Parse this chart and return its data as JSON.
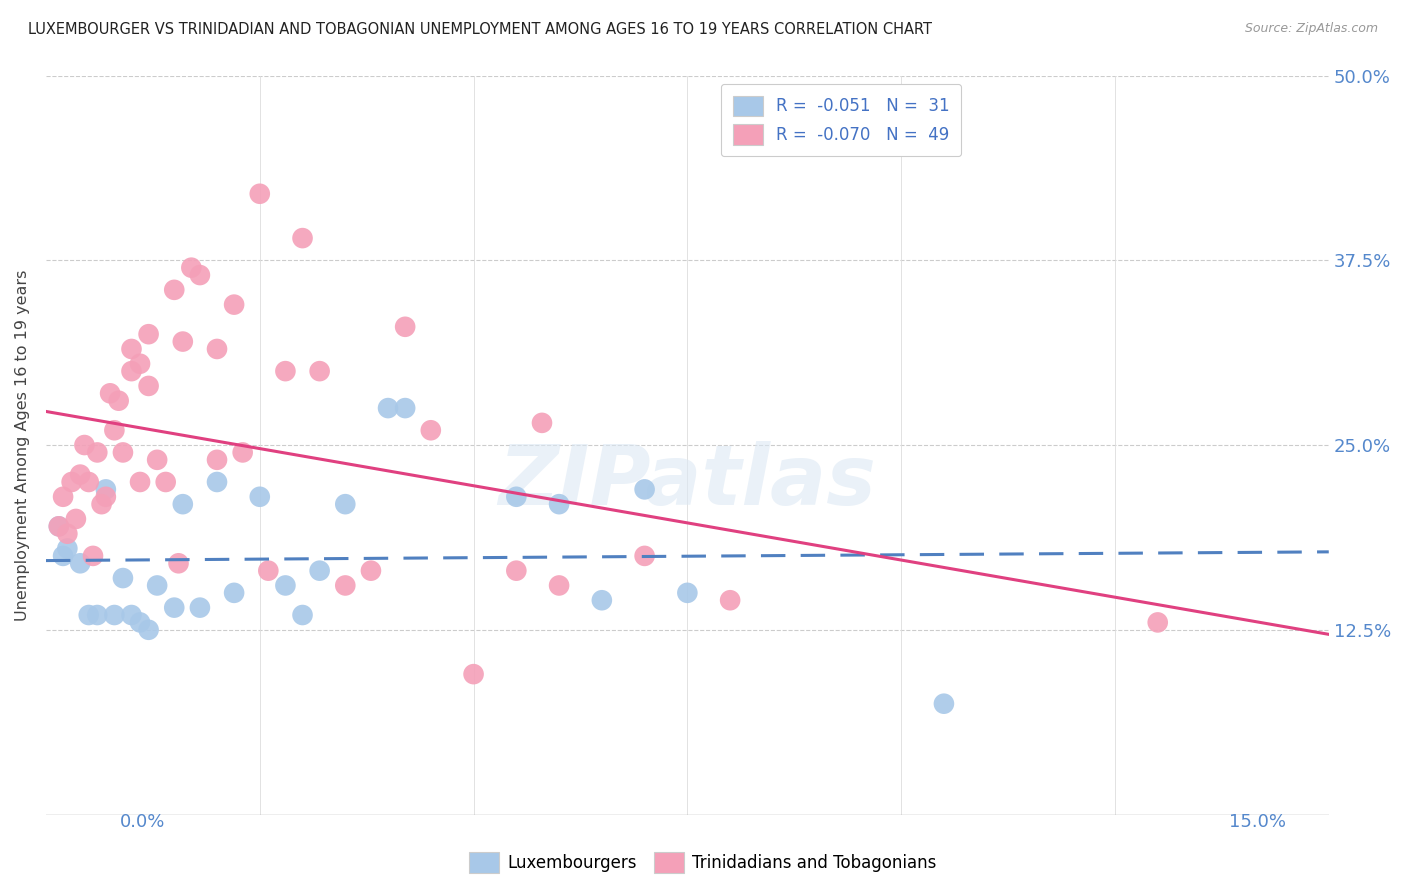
{
  "title": "LUXEMBOURGER VS TRINIDADIAN AND TOBAGONIAN UNEMPLOYMENT AMONG AGES 16 TO 19 YEARS CORRELATION CHART",
  "source": "Source: ZipAtlas.com",
  "ylabel": "Unemployment Among Ages 16 to 19 years",
  "xlim": [
    0.0,
    15.0
  ],
  "ylim": [
    0.0,
    50.0
  ],
  "ytick_vals": [
    12.5,
    25.0,
    37.5,
    50.0
  ],
  "legend_blue_r_val": "-0.051",
  "legend_blue_n_val": "31",
  "legend_pink_r_val": "-0.070",
  "legend_pink_n_val": "49",
  "blue_color": "#a8c8e8",
  "pink_color": "#f4a0b8",
  "blue_line_color": "#5080c0",
  "pink_line_color": "#e04080",
  "watermark": "ZIPatlas",
  "blue_points_x": [
    0.2,
    0.4,
    0.5,
    0.6,
    0.7,
    0.8,
    0.9,
    1.0,
    1.1,
    1.2,
    1.3,
    1.5,
    1.6,
    1.8,
    2.0,
    2.2,
    2.5,
    2.8,
    3.0,
    3.2,
    3.5,
    4.0,
    4.2,
    5.5,
    6.0,
    6.5,
    7.0,
    7.5,
    0.15,
    0.25,
    10.5
  ],
  "blue_points_y": [
    17.5,
    17.0,
    13.5,
    13.5,
    22.0,
    13.5,
    16.0,
    13.5,
    13.0,
    12.5,
    15.5,
    14.0,
    21.0,
    14.0,
    22.5,
    15.0,
    21.5,
    15.5,
    13.5,
    16.5,
    21.0,
    27.5,
    27.5,
    21.5,
    21.0,
    14.5,
    22.0,
    15.0,
    19.5,
    18.0,
    7.5
  ],
  "pink_points_x": [
    0.15,
    0.2,
    0.25,
    0.3,
    0.35,
    0.4,
    0.45,
    0.5,
    0.55,
    0.6,
    0.65,
    0.7,
    0.75,
    0.8,
    0.85,
    0.9,
    1.0,
    1.0,
    1.1,
    1.1,
    1.2,
    1.2,
    1.3,
    1.4,
    1.5,
    1.6,
    1.7,
    1.8,
    2.0,
    2.0,
    2.2,
    2.5,
    2.8,
    3.0,
    3.2,
    3.5,
    3.8,
    4.2,
    4.5,
    5.0,
    5.5,
    6.0,
    5.8,
    7.0,
    8.0,
    2.3,
    2.6,
    1.55,
    13.0
  ],
  "pink_points_y": [
    19.5,
    21.5,
    19.0,
    22.5,
    20.0,
    23.0,
    25.0,
    22.5,
    17.5,
    24.5,
    21.0,
    21.5,
    28.5,
    26.0,
    28.0,
    24.5,
    30.0,
    31.5,
    30.5,
    22.5,
    32.5,
    29.0,
    24.0,
    22.5,
    35.5,
    32.0,
    37.0,
    36.5,
    24.0,
    31.5,
    34.5,
    42.0,
    30.0,
    39.0,
    30.0,
    15.5,
    16.5,
    33.0,
    26.0,
    9.5,
    16.5,
    15.5,
    26.5,
    17.5,
    14.5,
    24.5,
    16.5,
    17.0,
    13.0
  ]
}
